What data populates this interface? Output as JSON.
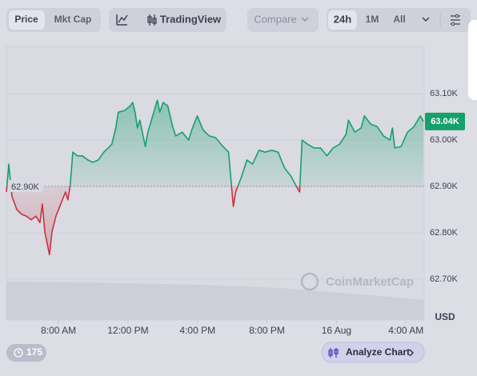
{
  "toolbar": {
    "tabs": [
      "Price",
      "Mkt Cap"
    ],
    "chart_mode": "TradingView",
    "compare": "Compare",
    "ranges": [
      "24h",
      "1M",
      "All"
    ]
  },
  "footer": {
    "badge": "175",
    "button": "Analyze Chart"
  },
  "chart_data": {
    "type": "line",
    "x": [
      5.0,
      5.14,
      5.32,
      5.6,
      5.87,
      6.15,
      6.43,
      6.7,
      6.93,
      7.07,
      7.21,
      7.48,
      7.62,
      7.85,
      8.13,
      8.4,
      8.54,
      8.68,
      8.82,
      9.09,
      9.37,
      9.69,
      9.97,
      10.29,
      10.61,
      11.07,
      11.3,
      11.44,
      11.81,
      12.13,
      12.27,
      12.41,
      12.54,
      12.68,
      13.0,
      13.14,
      13.42,
      13.69,
      13.83,
      14.02,
      14.29,
      14.57,
      14.75,
      15.12,
      15.49,
      15.67,
      15.99,
      16.32,
      16.68,
      17.05,
      17.42,
      17.79,
      17.93,
      18.06,
      18.2,
      18.52,
      18.85,
      19.17,
      19.54,
      19.9,
      20.27,
      20.64,
      21.01,
      21.38,
      21.74,
      21.88,
      22.02,
      22.34,
      22.71,
      23.08,
      23.45,
      23.81,
      24.18,
      24.55,
      24.69,
      25.06,
      25.42,
      25.61,
      25.98,
      26.34,
      26.71,
      27.08,
      27.22,
      27.36,
      27.72,
      28.09,
      28.46,
      28.83,
      29.01
    ],
    "values": [
      62888,
      62948,
      62879,
      62850,
      62840,
      62836,
      62828,
      62836,
      62822,
      62862,
      62802,
      62753,
      62802,
      62836,
      62862,
      62888,
      62871,
      62905,
      62974,
      62966,
      62966,
      62957,
      62952,
      62957,
      62974,
      62991,
      63026,
      63060,
      63064,
      63074,
      63081,
      63060,
      63026,
      63043,
      62986,
      63017,
      63052,
      63086,
      63060,
      63081,
      63074,
      63029,
      63009,
      63017,
      63000,
      63022,
      63052,
      63022,
      63009,
      63005,
      62988,
      62974,
      62914,
      62857,
      62888,
      62919,
      62957,
      62948,
      62978,
      62974,
      62978,
      62974,
      62940,
      62922,
      62897,
      62888,
      63000,
      62991,
      62983,
      62983,
      62966,
      62983,
      62991,
      63012,
      63043,
      63017,
      63026,
      63052,
      63034,
      63029,
      63009,
      63000,
      63026,
      62983,
      62986,
      63017,
      63029,
      63052,
      63040
    ],
    "color": "#16a06b",
    "down_color": "#c8323e",
    "xlim": [
      5,
      29.05
    ],
    "xticks": [
      {
        "value": 8,
        "label": "8:00 AM"
      },
      {
        "value": 12,
        "label": "12:00 PM"
      },
      {
        "value": 16,
        "label": "4:00 PM"
      },
      {
        "value": 20,
        "label": "8:00 PM"
      },
      {
        "value": 24,
        "label": "16 Aug"
      },
      {
        "value": 28,
        "label": "4:00 AM"
      }
    ],
    "ylim": [
      62612,
      63202
    ],
    "yticks": [
      {
        "value": 62700,
        "label": "62.70K"
      },
      {
        "value": 62800,
        "label": "62.80K"
      },
      {
        "value": 62900,
        "label": "62.90K"
      },
      {
        "value": 63000,
        "label": "63.00K"
      },
      {
        "value": 63100,
        "label": "63.10K"
      }
    ],
    "baseline": {
      "value": 62900,
      "label": "62.90K"
    },
    "last_price": {
      "value": 63040,
      "label": "63.04K"
    },
    "y_unit": "USD",
    "watermark": "CoinMarketCap",
    "grid": true
  }
}
